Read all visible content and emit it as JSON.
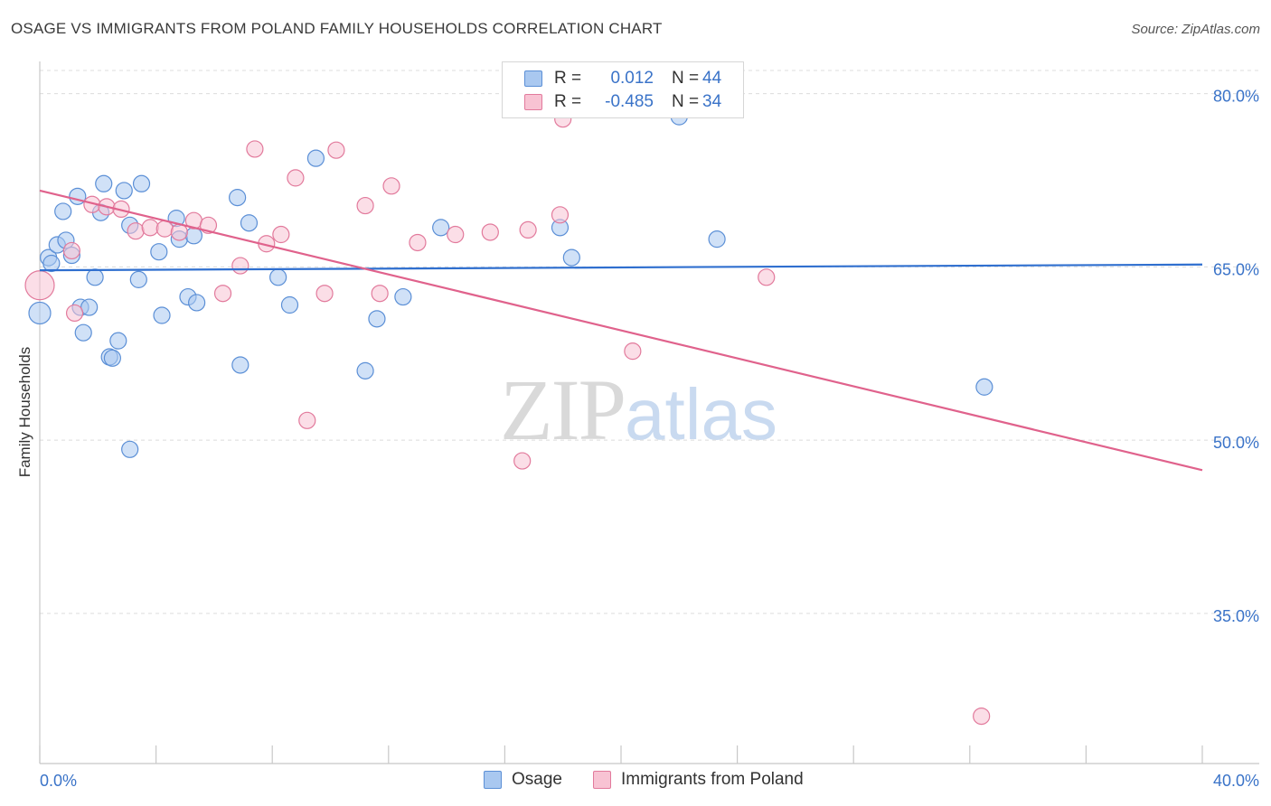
{
  "header": {
    "title": "OSAGE VS IMMIGRANTS FROM POLAND FAMILY HOUSEHOLDS CORRELATION CHART",
    "source": "Source: ZipAtlas.com"
  },
  "watermark": {
    "zip": "ZIP",
    "atlas": "atlas"
  },
  "legend": {
    "rows": [
      {
        "r_label": "R =",
        "r_value": "0.012",
        "n_label": "N =",
        "n_value": "44",
        "color": "#a9c8f0",
        "stroke": "#5b8fd6"
      },
      {
        "r_label": "R =",
        "r_value": "-0.485",
        "n_label": "N =",
        "n_value": "34",
        "color": "#f8c3d3",
        "stroke": "#e27a9c"
      }
    ]
  },
  "bottom_legend": [
    {
      "label": "Osage",
      "color": "#a9c8f0",
      "stroke": "#5b8fd6"
    },
    {
      "label": "Immigrants from Poland",
      "color": "#f8c3d3",
      "stroke": "#e27a9c"
    }
  ],
  "chart_data": {
    "type": "scatter",
    "xlabel": "",
    "ylabel": "Family Households",
    "xlim": [
      0,
      40
    ],
    "ylim": [
      22,
      82
    ],
    "x_ticks": [
      "0.0%",
      "40.0%"
    ],
    "y_ticks": [
      {
        "value": 80,
        "label": "80.0%"
      },
      {
        "value": 65,
        "label": "65.0%"
      },
      {
        "value": 50,
        "label": "50.0%"
      },
      {
        "value": 35,
        "label": "35.0%"
      }
    ],
    "grid": true,
    "series": [
      {
        "name": "Osage",
        "color": "#a9c8f0",
        "stroke": "#5b8fd6",
        "trend": {
          "x": [
            0,
            40
          ],
          "y": [
            64.7,
            65.2
          ],
          "color": "#2f6fcf"
        },
        "points": [
          [
            0.0,
            61.0,
            12
          ],
          [
            0.3,
            65.8,
            9
          ],
          [
            0.4,
            65.3,
            9
          ],
          [
            0.6,
            66.9,
            9
          ],
          [
            0.8,
            69.8,
            9
          ],
          [
            0.9,
            67.3,
            9
          ],
          [
            1.1,
            66.0,
            9
          ],
          [
            1.3,
            71.1,
            9
          ],
          [
            1.4,
            61.5,
            9
          ],
          [
            1.5,
            59.3,
            9
          ],
          [
            1.7,
            61.5,
            9
          ],
          [
            1.9,
            64.1,
            9
          ],
          [
            2.1,
            69.7,
            9
          ],
          [
            2.2,
            72.2,
            9
          ],
          [
            2.4,
            57.2,
            9
          ],
          [
            2.5,
            57.1,
            9
          ],
          [
            2.7,
            58.6,
            9
          ],
          [
            2.9,
            71.6,
            9
          ],
          [
            3.1,
            68.6,
            9
          ],
          [
            3.1,
            49.2,
            9
          ],
          [
            3.4,
            63.9,
            9
          ],
          [
            3.5,
            72.2,
            9
          ],
          [
            4.1,
            66.3,
            9
          ],
          [
            4.2,
            60.8,
            9
          ],
          [
            4.7,
            69.2,
            9
          ],
          [
            4.8,
            67.4,
            9
          ],
          [
            5.1,
            62.4,
            9
          ],
          [
            5.3,
            67.7,
            9
          ],
          [
            5.4,
            61.9,
            9
          ],
          [
            6.8,
            71.0,
            9
          ],
          [
            6.9,
            56.5,
            9
          ],
          [
            7.2,
            68.8,
            9
          ],
          [
            8.2,
            64.1,
            9
          ],
          [
            8.6,
            61.7,
            9
          ],
          [
            9.5,
            74.4,
            9
          ],
          [
            11.2,
            56.0,
            9
          ],
          [
            11.6,
            60.5,
            9
          ],
          [
            12.5,
            62.4,
            9
          ],
          [
            13.8,
            68.4,
            9
          ],
          [
            17.9,
            68.4,
            9
          ],
          [
            18.3,
            65.8,
            9
          ],
          [
            22.0,
            78.0,
            9
          ],
          [
            23.3,
            67.4,
            9
          ],
          [
            32.5,
            54.6,
            9
          ]
        ]
      },
      {
        "name": "Immigrants from Poland",
        "color": "#f8c3d3",
        "stroke": "#e27a9c",
        "trend": {
          "x": [
            0,
            40
          ],
          "y": [
            71.6,
            47.4
          ],
          "color": "#e0628c"
        },
        "points": [
          [
            0.0,
            63.4,
            16
          ],
          [
            1.1,
            66.4,
            9
          ],
          [
            1.2,
            61.0,
            9
          ],
          [
            1.8,
            70.4,
            9
          ],
          [
            2.3,
            70.2,
            9
          ],
          [
            2.8,
            70.0,
            9
          ],
          [
            3.3,
            68.1,
            9
          ],
          [
            3.8,
            68.4,
            9
          ],
          [
            4.3,
            68.3,
            9
          ],
          [
            4.8,
            68.0,
            9
          ],
          [
            5.3,
            69.0,
            9
          ],
          [
            5.8,
            68.6,
            9
          ],
          [
            6.3,
            62.7,
            9
          ],
          [
            6.9,
            65.1,
            9
          ],
          [
            7.4,
            75.2,
            9
          ],
          [
            7.8,
            67.0,
            9
          ],
          [
            8.3,
            67.8,
            9
          ],
          [
            8.8,
            72.7,
            9
          ],
          [
            9.2,
            51.7,
            9
          ],
          [
            9.8,
            62.7,
            9
          ],
          [
            10.2,
            75.1,
            9
          ],
          [
            11.2,
            70.3,
            9
          ],
          [
            11.7,
            62.7,
            9
          ],
          [
            12.1,
            72.0,
            9
          ],
          [
            13.0,
            67.1,
            9
          ],
          [
            14.3,
            67.8,
            9
          ],
          [
            15.5,
            68.0,
            9
          ],
          [
            16.6,
            48.2,
            9
          ],
          [
            16.8,
            68.2,
            9
          ],
          [
            17.9,
            69.5,
            9
          ],
          [
            18.0,
            77.8,
            9
          ],
          [
            20.4,
            57.7,
            9
          ],
          [
            25.0,
            64.1,
            9
          ],
          [
            32.4,
            26.1,
            9
          ]
        ]
      }
    ]
  }
}
